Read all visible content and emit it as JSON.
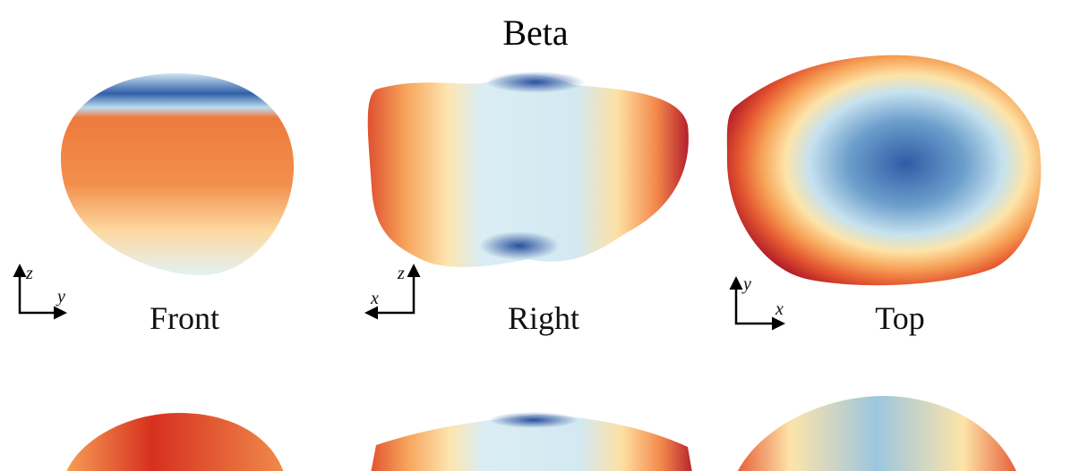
{
  "title": "Beta",
  "views": [
    {
      "label": "Front",
      "axis_vertical": "z",
      "axis_horizontal": "y"
    },
    {
      "label": "Right",
      "axis_vertical": "z",
      "axis_horizontal": "x"
    },
    {
      "label": "Top",
      "axis_vertical": "y",
      "axis_horizontal": "x"
    }
  ]
}
